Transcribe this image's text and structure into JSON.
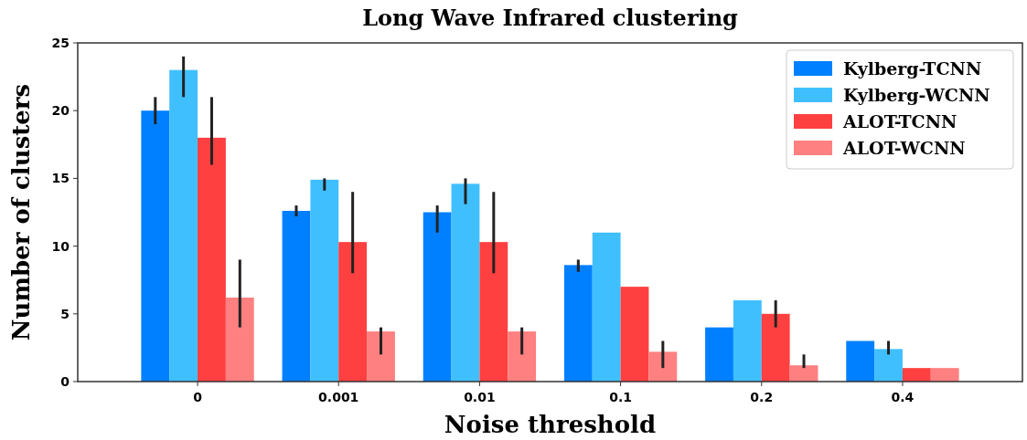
{
  "chart_data": {
    "type": "bar",
    "title": "Long Wave Infrared clustering",
    "xlabel": "Noise threshold",
    "ylabel": "Number of clusters",
    "categories": [
      "0",
      "0.001",
      "0.01",
      "0.1",
      "0.2",
      "0.4"
    ],
    "series": [
      {
        "name": "Kylberg-TCNN",
        "color": "#0080ff",
        "values": [
          20,
          12.6,
          12.5,
          8.6,
          4,
          3
        ],
        "errors": [
          [
            19,
            21
          ],
          [
            12.2,
            13
          ],
          [
            11,
            13
          ],
          [
            8.1,
            9
          ],
          null,
          null
        ]
      },
      {
        "name": "Kylberg-WCNN",
        "color": "#40bfff",
        "values": [
          23,
          14.9,
          14.6,
          11,
          6,
          2.4
        ],
        "errors": [
          [
            21,
            24
          ],
          [
            14.1,
            15
          ],
          [
            13.1,
            15
          ],
          null,
          null,
          [
            2,
            3
          ]
        ]
      },
      {
        "name": "ALOT-TCNN",
        "color": "#ff4040",
        "values": [
          18,
          10.3,
          10.3,
          7,
          5,
          1
        ],
        "errors": [
          [
            16,
            21
          ],
          [
            8,
            14
          ],
          [
            8,
            14
          ],
          null,
          [
            4,
            6
          ],
          null
        ]
      },
      {
        "name": "ALOT-WCNN",
        "color": "#ff8080",
        "values": [
          6.2,
          3.7,
          3.7,
          2.2,
          1.2,
          1
        ],
        "errors": [
          [
            4,
            9
          ],
          [
            2,
            4
          ],
          [
            2,
            4
          ],
          [
            1,
            3
          ],
          [
            1,
            2
          ],
          null
        ]
      }
    ],
    "ylim": [
      0,
      25
    ],
    "yticks": [
      0,
      5,
      10,
      15,
      20,
      25
    ],
    "legend": "top right"
  }
}
